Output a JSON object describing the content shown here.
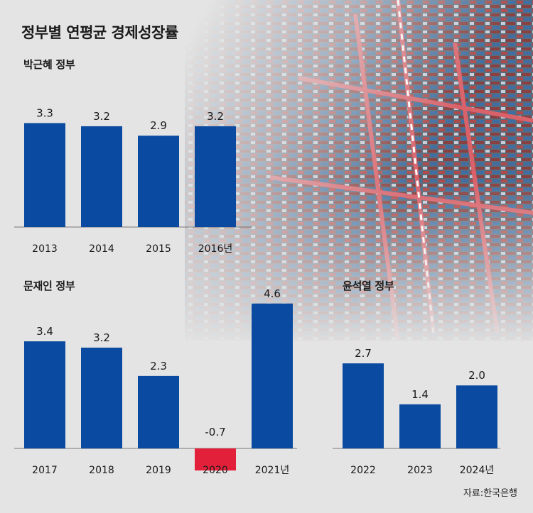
{
  "title": "정부별 연평균 경제성장률",
  "source": "자료:한국은행",
  "colors": {
    "bar": "#0a4aa0",
    "negative": "#e2203a",
    "axis": "#777777",
    "background": "#e4e4e4"
  },
  "chart_data": [
    {
      "type": "bar",
      "title": "박근혜 정부",
      "categories": [
        "2013",
        "2014",
        "2015",
        "2016년"
      ],
      "values": [
        3.3,
        3.2,
        2.9,
        3.2
      ],
      "labels": [
        "3.3",
        "3.2",
        "2.9",
        "3.2"
      ]
    },
    {
      "type": "bar",
      "title": "문재인 정부",
      "categories": [
        "2017",
        "2018",
        "2019",
        "2020",
        "2021년"
      ],
      "values": [
        3.4,
        3.2,
        2.3,
        -0.7,
        4.6
      ],
      "labels": [
        "3.4",
        "3.2",
        "2.3",
        "-0.7",
        "4.6"
      ]
    },
    {
      "type": "bar",
      "title": "윤석열 정부",
      "categories": [
        "2022",
        "2023",
        "2024년"
      ],
      "values": [
        2.7,
        1.4,
        2.0
      ],
      "labels": [
        "2.7",
        "1.4",
        "2.0"
      ]
    }
  ]
}
